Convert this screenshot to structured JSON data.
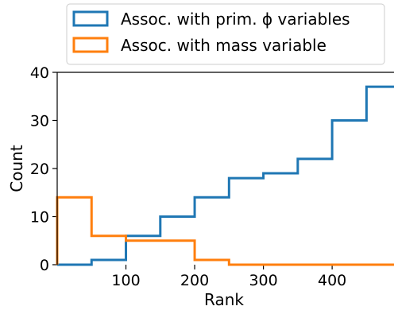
{
  "chart_data": {
    "type": "histogram",
    "title": "",
    "xlabel": "Rank",
    "ylabel": "Count",
    "xlim": [
      0,
      490
    ],
    "ylim": [
      0,
      40
    ],
    "x_ticks": [
      {
        "value": 100,
        "label": "100"
      },
      {
        "value": 200,
        "label": "200"
      },
      {
        "value": 300,
        "label": "300"
      },
      {
        "value": 400,
        "label": "400"
      }
    ],
    "y_ticks": [
      {
        "value": 0,
        "label": "0"
      },
      {
        "value": 10,
        "label": "10"
      },
      {
        "value": 20,
        "label": "20"
      },
      {
        "value": 30,
        "label": "30"
      },
      {
        "value": 40,
        "label": "40"
      }
    ],
    "bin_edges": [
      0,
      50,
      100,
      150,
      200,
      250,
      300,
      350,
      400,
      450,
      500
    ],
    "series": [
      {
        "name": "Assoc. with prim. ϕ variables",
        "color": "#1f77b4",
        "values": [
          0,
          1,
          6,
          10,
          14,
          18,
          19,
          22,
          30,
          37
        ]
      },
      {
        "name": "Assoc. with mass variable",
        "color": "#ff7f0e",
        "values": [
          14,
          6,
          5,
          5,
          1,
          0,
          0,
          0,
          0,
          0
        ]
      }
    ],
    "grid": false,
    "legend": {
      "placement": "above-top",
      "entries": [
        "Assoc. with prim. ϕ variables",
        "Assoc. with mass variable"
      ]
    }
  }
}
